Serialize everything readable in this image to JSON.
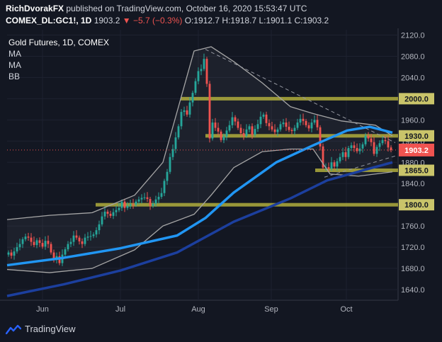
{
  "header": {
    "publisher": "RichDvorakFX",
    "published_text": "published on TradingView.com, October 16, 2020 15:53:47 UTC",
    "symbol": "COMEX_DL:GC1!, 1D",
    "price": "1903.2",
    "change_arrow": "▼",
    "change": "−5.7 (−0.3%)",
    "ohlc": "O:1912.7 H:1918.7 L:1901.1 C:1903.2"
  },
  "legend": {
    "title": "Gold Futures, 1D, COMEX",
    "indicators": [
      "MA",
      "MA",
      "BB"
    ]
  },
  "footer": {
    "logo_text": "TradingView",
    "logo_icon": "tradingview-logo-icon"
  },
  "colors": {
    "background": "#131722",
    "up_candle": "#26a69a",
    "down_candle": "#ef5350",
    "ma_fast": "#2196f3",
    "ma_slow": "#1c3f9e",
    "bollinger": "#a6a6a6",
    "support_resistance": "#b0ad3c",
    "label_bg": "#c9c46a",
    "price_label_bg": "#ef5350"
  },
  "chart_data": {
    "type": "candlestick",
    "title": "Gold Futures, 1D, COMEX",
    "x_ticks": [
      "Jun",
      "Jul",
      "Aug",
      "Sep",
      "Oct"
    ],
    "y_ticks": [
      1640,
      1680,
      1720,
      1760,
      1800,
      1840,
      1880,
      1920,
      1960,
      2000,
      2040,
      2080,
      2120
    ],
    "ylim": [
      1620,
      2130
    ],
    "horizontal_levels": [
      {
        "label": "2000.0",
        "value": 2000
      },
      {
        "label": "1930.0",
        "value": 1930
      },
      {
        "label": "1865.0",
        "value": 1865
      },
      {
        "label": "1800.0",
        "value": 1800
      }
    ],
    "current_price": {
      "label": "1903.2",
      "value": 1903.2
    },
    "closes": [
      1710,
      1704,
      1712,
      1720,
      1726,
      1735,
      1740,
      1738,
      1730,
      1724,
      1733,
      1728,
      1721,
      1732,
      1726,
      1710,
      1697,
      1703,
      1690,
      1706,
      1716,
      1726,
      1730,
      1742,
      1738,
      1731,
      1726,
      1738,
      1740,
      1741,
      1744,
      1752,
      1763,
      1778,
      1787,
      1783,
      1779,
      1786,
      1790,
      1794,
      1806,
      1794,
      1798,
      1801,
      1800,
      1806,
      1810,
      1813,
      1814,
      1811,
      1798,
      1802,
      1810,
      1815,
      1822,
      1845,
      1862,
      1890,
      1905,
      1927,
      1948,
      1975,
      1978,
      1970,
      1993,
      2011,
      2033,
      2052,
      2056,
      2075,
      2028,
      1925,
      1955,
      1945,
      1938,
      1922,
      1929,
      1940,
      1950,
      1965,
      1957,
      1945,
      1935,
      1930,
      1942,
      1948,
      1932,
      1943,
      1952,
      1966,
      1970,
      1954,
      1948,
      1942,
      1937,
      1942,
      1952,
      1955,
      1947,
      1941,
      1939,
      1945,
      1955,
      1962,
      1958,
      1950,
      1944,
      1955,
      1960,
      1946,
      1910,
      1870,
      1871,
      1868,
      1880,
      1872,
      1882,
      1890,
      1899,
      1890,
      1907,
      1912,
      1907,
      1901,
      1906,
      1914,
      1930,
      1925,
      1918,
      1896,
      1909,
      1916,
      1922,
      1920,
      1908,
      1903
    ],
    "ma_fast": [
      {
        "x": 0,
        "y": 1686
      },
      {
        "x": 20,
        "y": 1700
      },
      {
        "x": 40,
        "y": 1718
      },
      {
        "x": 60,
        "y": 1742
      },
      {
        "x": 70,
        "y": 1775
      },
      {
        "x": 80,
        "y": 1823
      },
      {
        "x": 95,
        "y": 1880
      },
      {
        "x": 108,
        "y": 1912
      },
      {
        "x": 120,
        "y": 1940
      },
      {
        "x": 128,
        "y": 1947
      },
      {
        "x": 136,
        "y": 1936
      }
    ],
    "ma_slow": [
      {
        "x": 0,
        "y": 1628
      },
      {
        "x": 20,
        "y": 1650
      },
      {
        "x": 40,
        "y": 1676
      },
      {
        "x": 60,
        "y": 1710
      },
      {
        "x": 80,
        "y": 1768
      },
      {
        "x": 100,
        "y": 1812
      },
      {
        "x": 113,
        "y": 1846
      },
      {
        "x": 125,
        "y": 1864
      },
      {
        "x": 136,
        "y": 1880
      }
    ],
    "bb_upper": [
      {
        "x": 0,
        "y": 1772
      },
      {
        "x": 15,
        "y": 1780
      },
      {
        "x": 30,
        "y": 1785
      },
      {
        "x": 45,
        "y": 1818
      },
      {
        "x": 55,
        "y": 1880
      },
      {
        "x": 66,
        "y": 2090
      },
      {
        "x": 72,
        "y": 2098
      },
      {
        "x": 80,
        "y": 2070
      },
      {
        "x": 90,
        "y": 2030
      },
      {
        "x": 100,
        "y": 1985
      },
      {
        "x": 108,
        "y": 1972
      },
      {
        "x": 118,
        "y": 1958
      },
      {
        "x": 130,
        "y": 1950
      },
      {
        "x": 136,
        "y": 1930
      }
    ],
    "bb_lower": [
      {
        "x": 0,
        "y": 1678
      },
      {
        "x": 15,
        "y": 1672
      },
      {
        "x": 30,
        "y": 1680
      },
      {
        "x": 45,
        "y": 1715
      },
      {
        "x": 55,
        "y": 1760
      },
      {
        "x": 66,
        "y": 1782
      },
      {
        "x": 72,
        "y": 1818
      },
      {
        "x": 80,
        "y": 1870
      },
      {
        "x": 90,
        "y": 1900
      },
      {
        "x": 100,
        "y": 1905
      },
      {
        "x": 108,
        "y": 1905
      },
      {
        "x": 114,
        "y": 1858
      },
      {
        "x": 124,
        "y": 1854
      },
      {
        "x": 136,
        "y": 1862
      }
    ],
    "trendlines": [
      {
        "from": {
          "x": 70,
          "y": 2093
        },
        "to": {
          "x": 137,
          "y": 1917
        }
      },
      {
        "from": {
          "x": 112,
          "y": 1852
        },
        "to": {
          "x": 137,
          "y": 1892
        }
      }
    ]
  }
}
